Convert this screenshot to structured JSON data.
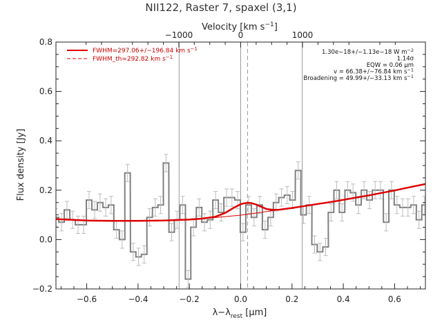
{
  "chart_data": {
    "type": "line",
    "title": "NII122, Raster 7, spaxel (3,1)",
    "xlabel_parts": [
      "λ−λ",
      "rest",
      " [μm]"
    ],
    "ylabel": "Flux density [Jy]",
    "top_xlabel_parts": [
      "Velocity [km s",
      "−1",
      "]"
    ],
    "xlim": [
      -0.72,
      0.72
    ],
    "ylim": [
      -0.2,
      0.8
    ],
    "x_ticks": [
      -0.6,
      -0.4,
      -0.2,
      0.0,
      0.2,
      0.4,
      0.6
    ],
    "x_tick_labels": [
      "−0.6",
      "−0.4",
      "−0.2",
      "0.0",
      "0.2",
      "0.4",
      "0.6"
    ],
    "y_ticks": [
      -0.2,
      0.0,
      0.2,
      0.4,
      0.6,
      0.8
    ],
    "y_tick_labels": [
      "−0.2",
      "0.0",
      "0.2",
      "0.4",
      "0.6",
      "0.8"
    ],
    "top_ticks": [
      -1000,
      0,
      1000
    ],
    "top_tick_labels": [
      "−1000",
      "0",
      "1000"
    ],
    "velocity_per_micron": 4149,
    "vertical_lines": [
      -0.24,
      0.0,
      0.24
    ],
    "dashed_line": 0.027,
    "legend": [
      {
        "label": "FWHM=297.06+/−196.84 km s",
        "sup": "−1",
        "style": "solid",
        "color": "#dd0000"
      },
      {
        "label": "FWHM_th=292.82 km s",
        "sup": "−1",
        "style": "dashed",
        "color": "#dd0000"
      }
    ],
    "annotations": [
      {
        "text": "1.30e−18+/−1.13e−18 W m",
        "sup": "−2"
      },
      {
        "text": "1.14σ",
        "sup": ""
      },
      {
        "text": "EQW = 0.06 μm",
        "sup": ""
      },
      {
        "text": "v = 66.38+/−76.84 km s",
        "sup": "−1"
      },
      {
        "text": "Broadening = 49.99+/−33.13 km s",
        "sup": "−1"
      }
    ],
    "series": [
      {
        "style": "step",
        "color": "#808080",
        "bin_width": 0.0214,
        "x": [
          -0.72,
          -0.698,
          -0.677,
          -0.655,
          -0.634,
          -0.612,
          -0.591,
          -0.569,
          -0.548,
          -0.526,
          -0.505,
          -0.484,
          -0.462,
          -0.441,
          -0.419,
          -0.398,
          -0.376,
          -0.355,
          -0.333,
          -0.312,
          -0.291,
          -0.269,
          -0.248,
          -0.226,
          -0.205,
          -0.184,
          -0.162,
          -0.141,
          -0.119,
          -0.098,
          -0.076,
          -0.055,
          -0.034,
          -0.012,
          0.009,
          0.031,
          0.052,
          0.074,
          0.095,
          0.117,
          0.138,
          0.159,
          0.181,
          0.202,
          0.224,
          0.245,
          0.267,
          0.288,
          0.309,
          0.331,
          0.352,
          0.374,
          0.395,
          0.417,
          0.438,
          0.459,
          0.481,
          0.502,
          0.524,
          0.545,
          0.567,
          0.588,
          0.609,
          0.631,
          0.652,
          0.674,
          0.695,
          0.717
        ],
        "y": [
          0.09,
          0.07,
          0.12,
          0.08,
          0.06,
          0.06,
          0.16,
          0.12,
          0.15,
          0.13,
          0.14,
          0.04,
          0.0,
          0.27,
          -0.05,
          -0.07,
          -0.06,
          0.09,
          0.13,
          0.14,
          0.31,
          0.03,
          0.08,
          0.14,
          -0.16,
          0.05,
          0.13,
          0.07,
          0.08,
          0.16,
          0.11,
          0.17,
          0.17,
          0.16,
          0.03,
          0.14,
          0.09,
          0.14,
          0.04,
          0.09,
          0.15,
          0.17,
          0.18,
          0.16,
          0.28,
          0.1,
          0.14,
          -0.02,
          -0.05,
          -0.03,
          0.11,
          0.2,
          0.11,
          0.2,
          0.19,
          0.14,
          0.2,
          0.16,
          0.2,
          0.2,
          0.07,
          0.2,
          0.14,
          0.13,
          0.13,
          0.14,
          0.08,
          0.14
        ],
        "yerr": 0.035
      },
      {
        "style": "line",
        "color": "#dd0000",
        "x": [
          -0.72,
          -0.66,
          -0.6,
          -0.5,
          -0.4,
          -0.3,
          -0.2,
          -0.15,
          -0.1,
          -0.05,
          0.0,
          0.05,
          0.1,
          0.15,
          0.2,
          0.25,
          0.3,
          0.35,
          0.4,
          0.45,
          0.5,
          0.55,
          0.6,
          0.65,
          0.72
        ],
        "y": [
          0.083,
          0.079,
          0.077,
          0.076,
          0.076,
          0.077,
          0.081,
          0.085,
          0.089,
          0.094,
          0.099,
          0.106,
          0.113,
          0.121,
          0.128,
          0.136,
          0.144,
          0.152,
          0.161,
          0.17,
          0.179,
          0.189,
          0.199,
          0.21,
          0.225
        ]
      },
      {
        "style": "line",
        "color": "#dd0000",
        "x": [
          -0.72,
          -0.6,
          -0.5,
          -0.4,
          -0.3,
          -0.2,
          -0.15,
          -0.1,
          -0.06,
          -0.03,
          0.0,
          0.01,
          0.027,
          0.04,
          0.06,
          0.08,
          0.1,
          0.12,
          0.15,
          0.2,
          0.25,
          0.3,
          0.35,
          0.4,
          0.45,
          0.5,
          0.55,
          0.6,
          0.65,
          0.72
        ],
        "y": [
          0.083,
          0.077,
          0.076,
          0.076,
          0.077,
          0.081,
          0.085,
          0.092,
          0.108,
          0.127,
          0.143,
          0.146,
          0.149,
          0.148,
          0.142,
          0.133,
          0.124,
          0.12,
          0.121,
          0.128,
          0.136,
          0.144,
          0.152,
          0.161,
          0.17,
          0.179,
          0.189,
          0.199,
          0.21,
          0.225
        ]
      }
    ]
  }
}
